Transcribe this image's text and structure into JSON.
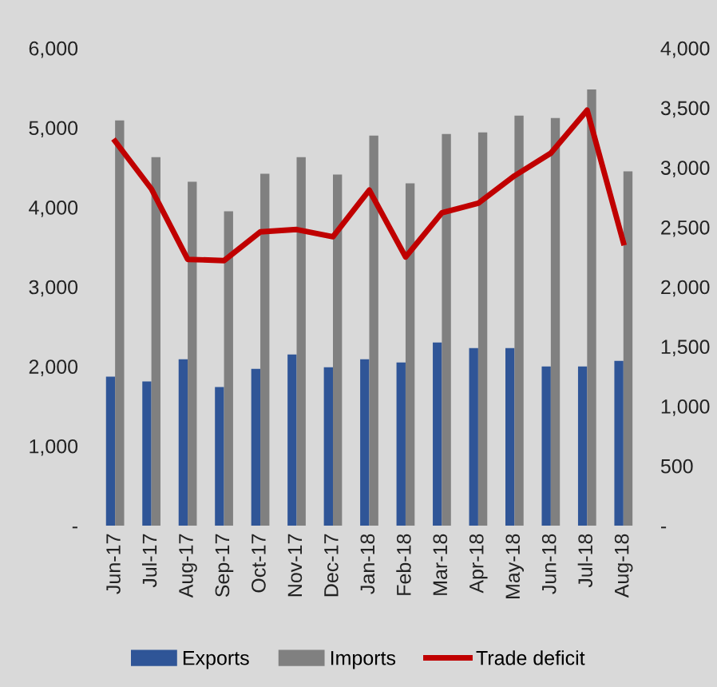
{
  "chart_data": {
    "type": "bar",
    "categories": [
      "Jun-17",
      "Jul-17",
      "Aug-17",
      "Sep-17",
      "Oct-17",
      "Nov-17",
      "Dec-17",
      "Jan-18",
      "Feb-18",
      "Mar-18",
      "Apr-18",
      "May-18",
      "Jun-18",
      "Jul-18",
      "Aug-18"
    ],
    "series": [
      {
        "name": "Exports",
        "color": "#2f5597",
        "values": [
          1870,
          1810,
          2090,
          1740,
          1970,
          2150,
          1990,
          2090,
          2050,
          2300,
          2230,
          2230,
          2000,
          2000,
          2070
        ]
      },
      {
        "name": "Imports",
        "color": "#808080",
        "values": [
          5090,
          4630,
          4320,
          3950,
          4420,
          4630,
          4410,
          4900,
          4300,
          4920,
          4940,
          5150,
          5120,
          5480,
          4450
        ]
      },
      {
        "name": "Trade deficit",
        "color": "#c00000",
        "type": "line",
        "axis": "y2",
        "values": [
          3220,
          2820,
          2230,
          2220,
          2460,
          2480,
          2420,
          2810,
          2250,
          2620,
          2700,
          2930,
          3120,
          3480,
          2370
        ]
      }
    ],
    "ylim": [
      0,
      6000
    ],
    "yticks": [
      {
        "value": 0,
        "label": "-"
      },
      {
        "value": 1000,
        "label": "1,000"
      },
      {
        "value": 2000,
        "label": "2,000"
      },
      {
        "value": 3000,
        "label": "3,000"
      },
      {
        "value": 4000,
        "label": "4,000"
      },
      {
        "value": 5000,
        "label": "5,000"
      },
      {
        "value": 6000,
        "label": "6,000"
      }
    ],
    "y2lim": [
      0,
      4000
    ],
    "y2ticks": [
      {
        "value": 0,
        "label": "-"
      },
      {
        "value": 500,
        "label": "500"
      },
      {
        "value": 1000,
        "label": "1,000"
      },
      {
        "value": 1500,
        "label": "1,500"
      },
      {
        "value": 2000,
        "label": "2,000"
      },
      {
        "value": 2500,
        "label": "2,500"
      },
      {
        "value": 3000,
        "label": "3,000"
      },
      {
        "value": 3500,
        "label": "3,500"
      },
      {
        "value": 4000,
        "label": "4,000"
      }
    ],
    "grid": false,
    "legend": "bottom"
  }
}
